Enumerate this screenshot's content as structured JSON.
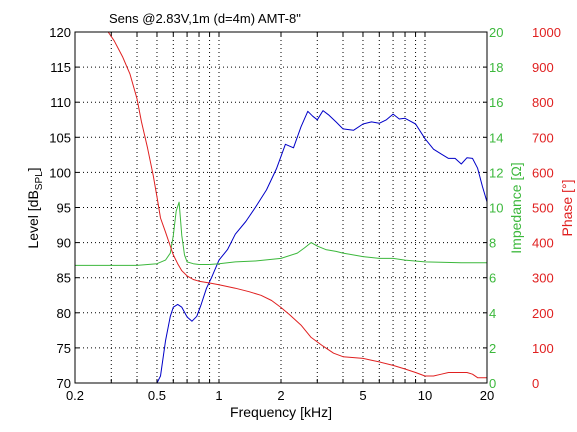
{
  "chart_data": {
    "type": "line",
    "title": "Sens @2.83V,1m (d=4m)   AMT-8\"",
    "xlabel": "Frequency [kHz]",
    "xscale": "log",
    "xlim": [
      0.2,
      20
    ],
    "xticks": [
      0.2,
      0.5,
      1,
      2,
      5,
      10,
      20
    ],
    "xtick_labels": [
      "0.2",
      "0.5",
      "1",
      "2",
      "5",
      "10",
      "20"
    ],
    "grid": true,
    "axes": {
      "level": {
        "label_parts": [
          "Level [dB",
          "SPL",
          "]"
        ],
        "range": [
          70,
          120
        ],
        "ticks": [
          70,
          75,
          80,
          85,
          90,
          95,
          100,
          105,
          110,
          115,
          120
        ],
        "color": "#000000"
      },
      "impedance": {
        "label": "Impedance [Ω]",
        "range": [
          0,
          20
        ],
        "ticks": [
          0,
          2,
          4,
          6,
          8,
          10,
          12,
          14,
          16,
          18,
          20
        ],
        "color": "#3cb83c"
      },
      "phase": {
        "label": "Phase [°]",
        "range": [
          0,
          1000
        ],
        "ticks": [
          0,
          100,
          200,
          300,
          400,
          500,
          600,
          700,
          800,
          900,
          1000
        ],
        "color": "#e02020"
      }
    },
    "series": [
      {
        "axis": "level",
        "color": "#0000c8",
        "x": [
          0.5,
          0.52,
          0.55,
          0.58,
          0.6,
          0.63,
          0.66,
          0.7,
          0.74,
          0.78,
          0.82,
          0.87,
          0.92,
          1.0,
          1.1,
          1.2,
          1.35,
          1.5,
          1.7,
          1.9,
          2.1,
          2.3,
          2.5,
          2.7,
          2.85,
          3.0,
          3.2,
          3.4,
          3.7,
          4.0,
          4.5,
          5.0,
          5.5,
          6.0,
          6.5,
          7.0,
          7.5,
          8.0,
          8.5,
          9.0,
          10.0,
          11.0,
          12.0,
          13.0,
          14.0,
          15.0,
          16.0,
          17.0,
          18.0,
          19.0,
          20.0
        ],
        "y": [
          70,
          71,
          76,
          79.5,
          80.8,
          81.2,
          80.8,
          79.4,
          78.8,
          79.5,
          81.2,
          83.5,
          85,
          87.5,
          89,
          91.2,
          93,
          95,
          97.5,
          100.5,
          104,
          103.5,
          106.5,
          108.7,
          108,
          107.5,
          108.8,
          108.2,
          107.2,
          106.2,
          106,
          106.9,
          107.2,
          107,
          107.5,
          108.3,
          107.6,
          107.7,
          107.3,
          106.9,
          104.8,
          103.3,
          102.6,
          102,
          102,
          101.2,
          102.1,
          102,
          100.6,
          98,
          95.8
        ]
      },
      {
        "axis": "impedance",
        "color": "#3cb83c",
        "x": [
          0.2,
          0.3,
          0.4,
          0.5,
          0.55,
          0.58,
          0.6,
          0.62,
          0.64,
          0.66,
          0.68,
          0.7,
          0.75,
          0.8,
          0.9,
          1.0,
          1.2,
          1.5,
          2.0,
          2.4,
          2.6,
          2.8,
          3.0,
          3.3,
          3.7,
          4.0,
          5.0,
          6.0,
          7.0,
          8.0,
          10.0,
          15.0,
          20.0
        ],
        "y": [
          6.7,
          6.7,
          6.7,
          6.8,
          7.0,
          7.4,
          8.4,
          9.8,
          10.3,
          8.4,
          7.3,
          6.9,
          6.8,
          6.75,
          6.75,
          6.8,
          6.9,
          6.95,
          7.1,
          7.4,
          7.7,
          8.0,
          7.8,
          7.6,
          7.5,
          7.4,
          7.2,
          7.1,
          7.1,
          7.0,
          6.9,
          6.85,
          6.85
        ]
      },
      {
        "axis": "phase",
        "color": "#e02020",
        "x": [
          0.29,
          0.31,
          0.34,
          0.37,
          0.4,
          0.42,
          0.45,
          0.48,
          0.5,
          0.52,
          0.55,
          0.58,
          0.6,
          0.63,
          0.66,
          0.7,
          0.75,
          0.8,
          0.9,
          1.0,
          1.2,
          1.4,
          1.6,
          1.8,
          2.0,
          2.2,
          2.5,
          2.8,
          3.2,
          3.6,
          4.0,
          5.0,
          5.5,
          6.0,
          7.0,
          8.0,
          9.0,
          10.0,
          11.0,
          12.0,
          13.0,
          14.0,
          15.0,
          16.0,
          17.0,
          18.0,
          19.0,
          20.0
        ],
        "y": [
          1000,
          975,
          930,
          880,
          810,
          745,
          670,
          590,
          530,
          470,
          430,
          390,
          365,
          340,
          320,
          305,
          295,
          290,
          285,
          280,
          270,
          260,
          250,
          235,
          215,
          195,
          165,
          130,
          105,
          85,
          75,
          70,
          65,
          60,
          50,
          40,
          30,
          20,
          20,
          25,
          30,
          30,
          30,
          30,
          25,
          15,
          15,
          15
        ]
      }
    ]
  }
}
